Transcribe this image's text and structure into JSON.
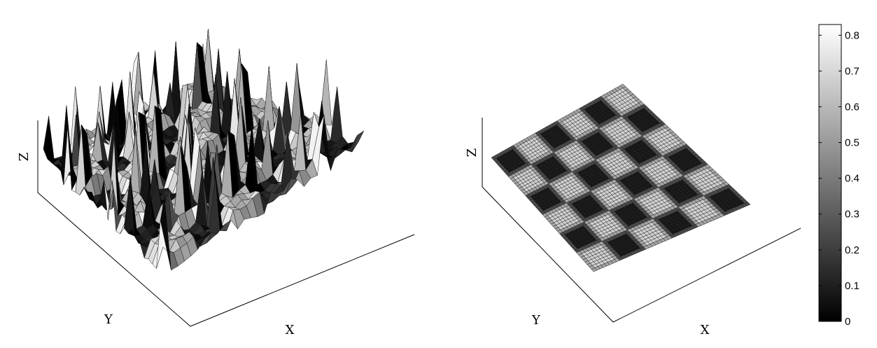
{
  "chart_data": [
    {
      "type": "surface",
      "panel": "left",
      "xlabel": "X",
      "ylabel": "Y",
      "zlabel": "Z",
      "description_of_values": "rough, spiky checkerboard surface",
      "colormap": "gray",
      "grid": false,
      "colorbar": false
    },
    {
      "type": "surface",
      "panel": "right",
      "xlabel": "X",
      "ylabel": "Y",
      "zlabel": "Z",
      "description_of_values": "flat checkerboard pattern of light and dark squares",
      "colormap": "gray",
      "grid": false,
      "checkerboard": {
        "rows": 6,
        "cols": 6,
        "light_value": 0.72,
        "dark_value": 0.08,
        "border_value": 0.42
      },
      "colorbar": {
        "clim": [
          0,
          0.83
        ],
        "ticks": [
          "0",
          "0.1",
          "0.2",
          "0.3",
          "0.4",
          "0.5",
          "0.6",
          "0.7",
          "0.8"
        ]
      }
    }
  ]
}
